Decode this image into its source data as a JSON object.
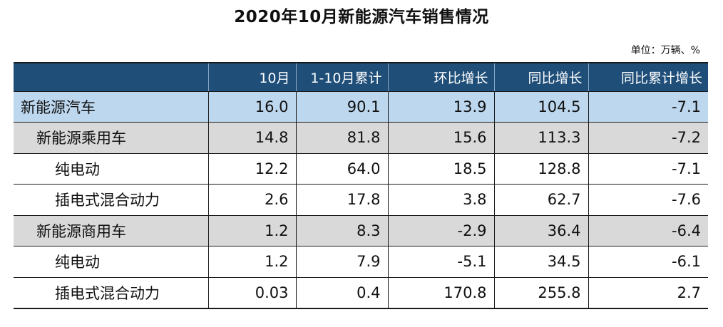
{
  "title": "2020年10月新能源汽车销售情况",
  "unit": "单位：万辆、%",
  "table": {
    "headers": [
      "",
      "10月",
      "1-10月累计",
      "环比增长",
      "同比增长",
      "同比累计增长"
    ],
    "rows": [
      {
        "level": 0,
        "label": "新能源汽车",
        "values": [
          "16.0",
          "90.1",
          "13.9",
          "104.5",
          "-7.1"
        ]
      },
      {
        "level": 1,
        "label": "新能源乘用车",
        "values": [
          "14.8",
          "81.8",
          "15.6",
          "113.3",
          "-7.2"
        ]
      },
      {
        "level": 2,
        "label": "纯电动",
        "values": [
          "12.2",
          "64.0",
          "18.5",
          "128.8",
          "-7.1"
        ]
      },
      {
        "level": 2,
        "label": "插电式混合动力",
        "values": [
          "2.6",
          "17.8",
          "3.8",
          "62.7",
          "-7.6"
        ]
      },
      {
        "level": 1,
        "label": "新能源商用车",
        "values": [
          "1.2",
          "8.3",
          "-2.9",
          "36.4",
          "-6.4"
        ]
      },
      {
        "level": 2,
        "label": "纯电动",
        "values": [
          "1.2",
          "7.9",
          "-5.1",
          "34.5",
          "-6.1"
        ]
      },
      {
        "level": 2,
        "label": "插电式混合动力",
        "values": [
          "0.03",
          "0.4",
          "170.8",
          "255.8",
          "2.7"
        ]
      }
    ]
  },
  "colors": {
    "header_bg": "#1f4e79",
    "level0_bg": "#bdd7ee",
    "level1_bg": "#d9d9d9"
  }
}
